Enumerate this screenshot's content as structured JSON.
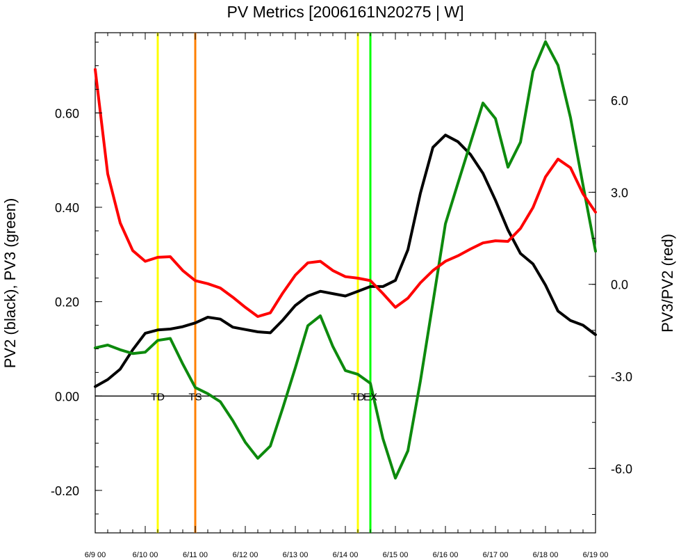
{
  "chart_data": {
    "type": "line",
    "title": "PV Metrics [2006161N20275 | W]",
    "ylabel_left": "PV2 (black), PV3 (green)",
    "ylabel_right": "PV3/PV2 (red)",
    "ylim_left": [
      -0.29,
      0.77
    ],
    "ylim_right": [
      -8.1,
      8.2
    ],
    "xlim": [
      0,
      10
    ],
    "y_ticks_left": [
      {
        "value": -0.2,
        "label": "-0.20"
      },
      {
        "value": 0.0,
        "label": "0.00"
      },
      {
        "value": 0.2,
        "label": "0.20"
      },
      {
        "value": 0.4,
        "label": "0.40"
      },
      {
        "value": 0.6,
        "label": "0.60"
      }
    ],
    "y_ticks_right": [
      {
        "value": -6.0,
        "label": "-6.0"
      },
      {
        "value": -3.0,
        "label": "-3.0"
      },
      {
        "value": 0.0,
        "label": "0.0"
      },
      {
        "value": 3.0,
        "label": "3.0"
      },
      {
        "value": 6.0,
        "label": "6.0"
      }
    ],
    "x_ticks": [
      {
        "value": 0,
        "label": "6/9 00"
      },
      {
        "value": 1,
        "label": "6/10 00"
      },
      {
        "value": 2,
        "label": "6/11 00"
      },
      {
        "value": 3,
        "label": "6/12 00"
      },
      {
        "value": 4,
        "label": "6/13 00"
      },
      {
        "value": 5,
        "label": "6/14 00"
      },
      {
        "value": 6,
        "label": "6/15 00"
      },
      {
        "value": 7,
        "label": "6/16 00"
      },
      {
        "value": 8,
        "label": "6/17 00"
      },
      {
        "value": 9,
        "label": "6/18 00"
      },
      {
        "value": 10,
        "label": "6/19 00"
      }
    ],
    "series": [
      {
        "axis": "left",
        "color": "#000000",
        "x": [
          0,
          0.25,
          0.5,
          0.75,
          1,
          1.25,
          1.5,
          1.75,
          2,
          2.25,
          2.5,
          2.75,
          3,
          3.25,
          3.5,
          3.75,
          4,
          4.25,
          4.5,
          4.75,
          5,
          5.25,
          5.5,
          5.75,
          6,
          6.25,
          6.5,
          6.75,
          7,
          7.25,
          7.5,
          7.75,
          8,
          8.25,
          8.5,
          8.75,
          9,
          9.25,
          9.5,
          9.75,
          10
        ],
        "values": [
          0.02,
          0.035,
          0.057,
          0.098,
          0.133,
          0.14,
          0.142,
          0.147,
          0.155,
          0.167,
          0.163,
          0.146,
          0.141,
          0.136,
          0.134,
          0.161,
          0.192,
          0.212,
          0.222,
          0.217,
          0.212,
          0.222,
          0.232,
          0.232,
          0.245,
          0.31,
          0.43,
          0.527,
          0.553,
          0.539,
          0.512,
          0.472,
          0.415,
          0.352,
          0.302,
          0.28,
          0.235,
          0.18,
          0.16,
          0.15,
          0.13
        ]
      },
      {
        "axis": "left",
        "color": "#0d8a0d",
        "x": [
          0,
          0.25,
          0.5,
          0.75,
          1,
          1.25,
          1.5,
          1.75,
          2,
          2.25,
          2.5,
          2.75,
          3,
          3.25,
          3.5,
          3.75,
          4,
          4.25,
          4.5,
          4.75,
          5,
          5.25,
          5.5,
          5.75,
          6,
          6.25,
          6.5,
          6.75,
          7,
          7.25,
          7.5,
          7.75,
          8,
          8.25,
          8.5,
          8.75,
          9,
          9.25,
          9.5,
          9.75,
          10
        ],
        "values": [
          0.102,
          0.108,
          0.098,
          0.09,
          0.093,
          0.118,
          0.122,
          0.068,
          0.018,
          0.005,
          -0.012,
          -0.052,
          -0.098,
          -0.132,
          -0.106,
          -0.025,
          0.06,
          0.149,
          0.17,
          0.105,
          0.054,
          0.046,
          0.027,
          -0.09,
          -0.174,
          -0.116,
          0.032,
          0.198,
          0.365,
          0.451,
          0.536,
          0.621,
          0.588,
          0.485,
          0.538,
          0.688,
          0.751,
          0.701,
          0.59,
          0.447,
          0.307
        ]
      },
      {
        "axis": "right",
        "color": "#ff0000",
        "x": [
          0,
          0.25,
          0.5,
          0.75,
          1,
          1.25,
          1.5,
          1.75,
          2,
          2.25,
          2.5,
          2.75,
          3,
          3.25,
          3.5,
          3.75,
          4,
          4.25,
          4.5,
          4.75,
          5,
          5.25,
          5.5,
          5.75,
          6,
          6.25,
          6.5,
          6.75,
          7,
          7.25,
          7.5,
          7.75,
          8,
          8.25,
          8.5,
          8.75,
          9,
          9.25,
          9.5,
          9.75,
          10
        ],
        "values": [
          7.0,
          3.6,
          2.0,
          1.1,
          0.75,
          0.88,
          0.9,
          0.45,
          0.12,
          0.02,
          -0.12,
          -0.42,
          -0.75,
          -1.05,
          -0.93,
          -0.28,
          0.3,
          0.7,
          0.75,
          0.45,
          0.25,
          0.2,
          0.12,
          -0.3,
          -0.75,
          -0.45,
          0.05,
          0.45,
          0.75,
          0.93,
          1.15,
          1.35,
          1.42,
          1.4,
          1.82,
          2.5,
          3.5,
          4.08,
          3.8,
          2.95,
          2.35
        ]
      }
    ],
    "vertical_markers": [
      {
        "x": 1.25,
        "color": "#ffff00",
        "label": "TD"
      },
      {
        "x": 2.0,
        "color": "#ff8000",
        "label": "TS"
      },
      {
        "x": 5.25,
        "color": "#ffff00",
        "label": "TD"
      },
      {
        "x": 5.5,
        "color": "#00ff00",
        "label": "EX"
      }
    ],
    "zero_line": 0.0,
    "grid": false,
    "legend": "none"
  }
}
